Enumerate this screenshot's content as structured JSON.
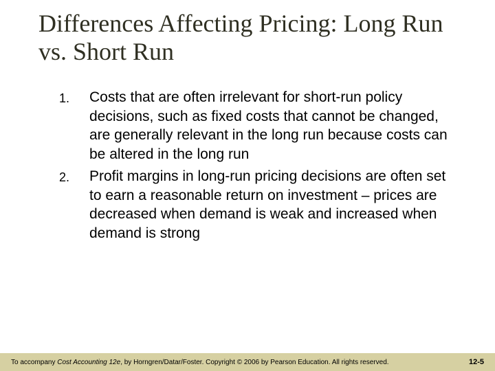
{
  "colors": {
    "background": "#ffffff",
    "title_text": "#2f2f22",
    "body_text": "#000000",
    "footer_bg": "#d6d0a2",
    "footer_text": "#000000"
  },
  "typography": {
    "title_font": "Times New Roman",
    "title_size_pt": 27,
    "body_font": "Arial",
    "body_size_pt": 16,
    "number_size_pt": 13,
    "footer_size_pt": 8
  },
  "title": "Differences Affecting Pricing: Long Run vs. Short Run",
  "items": [
    {
      "number": "1.",
      "text": "Costs that are often irrelevant for short-run policy decisions, such as fixed costs that cannot be changed, are generally relevant in the long run because costs can be altered in the long run"
    },
    {
      "number": "2.",
      "text": "Profit margins in long-run pricing decisions are often set to earn a reasonable return on investment – prices are decreased when demand is weak and increased when demand is strong"
    }
  ],
  "footer": {
    "pre": "To accompany ",
    "book": "Cost Accounting 12e",
    "post": ", by Horngren/Datar/Foster. Copyright © 2006 by Pearson Education. All rights reserved.",
    "page": "12-5"
  }
}
